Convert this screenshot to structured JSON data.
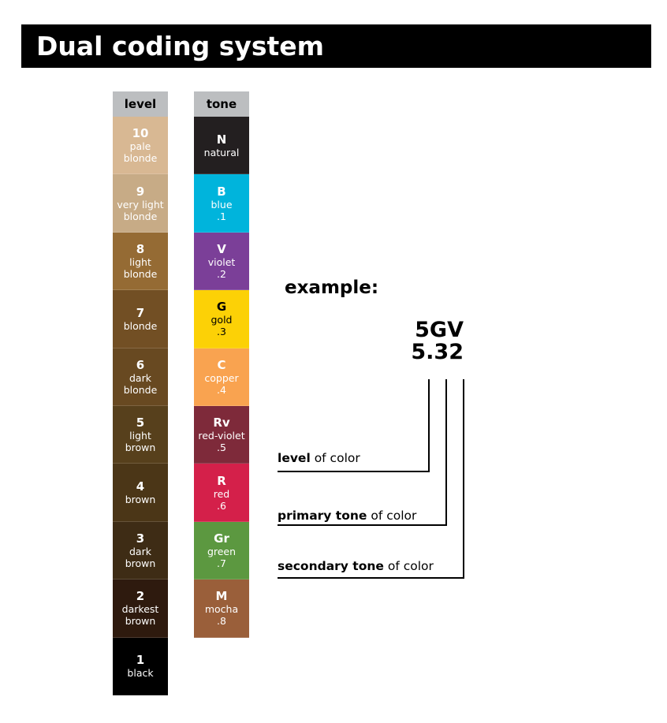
{
  "title": "Dual coding system",
  "level": {
    "header": "level",
    "items": [
      {
        "code": "10",
        "name": "pale blonde",
        "color": "#d8b893"
      },
      {
        "code": "9",
        "name": "very light blonde",
        "color": "#c7ab86"
      },
      {
        "code": "8",
        "name": "light blonde",
        "color": "#956b34"
      },
      {
        "code": "7",
        "name": "blonde",
        "color": "#724f24"
      },
      {
        "code": "6",
        "name": "dark blonde",
        "color": "#684921"
      },
      {
        "code": "5",
        "name": "light brown",
        "color": "#57401c"
      },
      {
        "code": "4",
        "name": "brown",
        "color": "#4b3617"
      },
      {
        "code": "3",
        "name": "dark brown",
        "color": "#3e2c15"
      },
      {
        "code": "2",
        "name": "darkest brown",
        "color": "#2e1a0e"
      },
      {
        "code": "1",
        "name": "black",
        "color": "#000000"
      }
    ]
  },
  "tone": {
    "header": "tone",
    "items": [
      {
        "code": "N",
        "name": "natural",
        "num": "",
        "color": "#231f20",
        "text": "#ffffff"
      },
      {
        "code": "B",
        "name": "blue",
        "num": ".1",
        "color": "#00b4dc",
        "text": "#ffffff"
      },
      {
        "code": "V",
        "name": "violet",
        "num": ".2",
        "color": "#7b3f98",
        "text": "#ffffff"
      },
      {
        "code": "G",
        "name": "gold",
        "num": ".3",
        "color": "#fcd106",
        "text": "#000000"
      },
      {
        "code": "C",
        "name": "copper",
        "num": ".4",
        "color": "#f9a350",
        "text": "#ffffff"
      },
      {
        "code": "Rv",
        "name": "red-violet",
        "num": ".5",
        "color": "#7e2a3a",
        "text": "#ffffff"
      },
      {
        "code": "R",
        "name": "red",
        "num": ".6",
        "color": "#d4204a",
        "text": "#ffffff"
      },
      {
        "code": "Gr",
        "name": "green",
        "num": ".7",
        "color": "#5c9840",
        "text": "#ffffff"
      },
      {
        "code": "M",
        "name": "mocha",
        "num": ".8",
        "color": "#9a5f3a",
        "text": "#ffffff"
      }
    ]
  },
  "example": {
    "label": "example:",
    "code_letters": "5GV",
    "code_numbers": "5.32",
    "legend": [
      {
        "bold": "level",
        "rest": " of color"
      },
      {
        "bold": "primary tone",
        "rest": " of color"
      },
      {
        "bold": "secondary tone",
        "rest": " of color"
      }
    ]
  }
}
